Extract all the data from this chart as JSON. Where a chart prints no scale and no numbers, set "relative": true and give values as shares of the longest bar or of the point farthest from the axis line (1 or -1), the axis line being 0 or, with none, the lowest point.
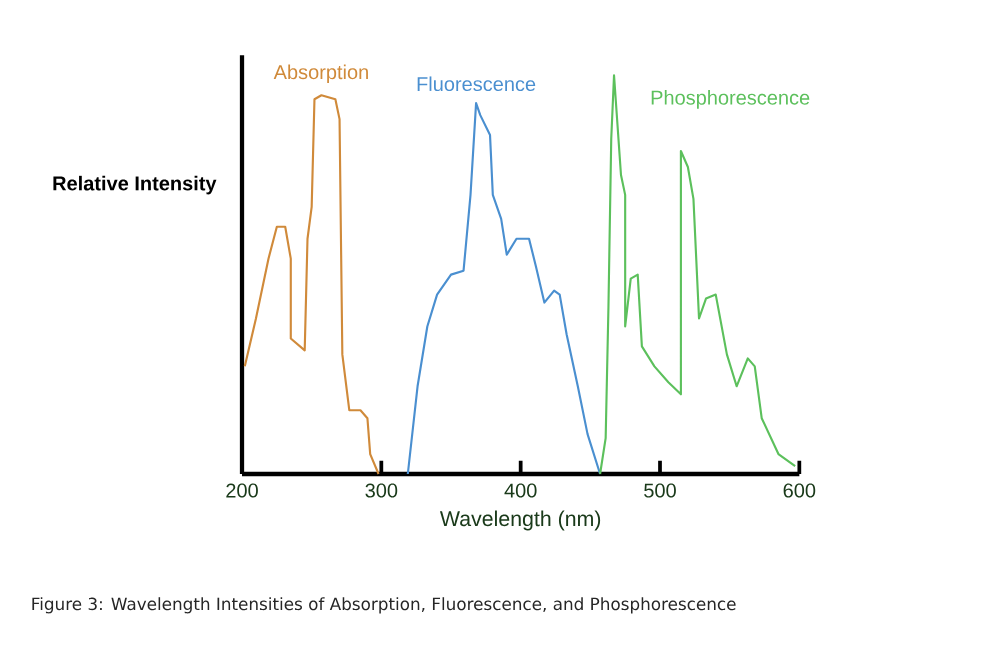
{
  "chart_data": {
    "type": "line",
    "relative": true,
    "xlabel": "Wavelength (nm)",
    "ylabel": "Relative Intensity",
    "xlim": [
      200,
      600
    ],
    "xticks": [
      200,
      300,
      400,
      500,
      600
    ],
    "grid": false,
    "legend": false,
    "marker": "none",
    "line_style": "solid",
    "annotations": [
      "Figure 3: Wavelength Intensities of Absorption, Fluorescence, and Phosphorescence"
    ],
    "series": [
      {
        "name": "Absorption",
        "color": "#d08a3a",
        "x": [
          202,
          210,
          219,
          225,
          231,
          235,
          235,
          245,
          247,
          250,
          252,
          257,
          267,
          270,
          272,
          277,
          285,
          290,
          292,
          298
        ],
        "values": [
          0.27,
          0.39,
          0.54,
          0.62,
          0.62,
          0.54,
          0.34,
          0.31,
          0.59,
          0.67,
          0.94,
          0.95,
          0.94,
          0.89,
          0.3,
          0.16,
          0.16,
          0.14,
          0.05,
          0
        ]
      },
      {
        "name": "Fluorescence",
        "color": "#4a8fd0",
        "x": [
          319,
          326,
          333,
          340,
          350,
          359,
          364,
          368,
          371,
          378,
          380,
          386,
          390,
          397,
          406,
          411,
          417,
          424,
          428,
          433,
          441,
          448,
          457
        ],
        "values": [
          0,
          0.22,
          0.37,
          0.45,
          0.5,
          0.51,
          0.7,
          0.93,
          0.9,
          0.85,
          0.7,
          0.64,
          0.55,
          0.59,
          0.59,
          0.52,
          0.43,
          0.46,
          0.45,
          0.35,
          0.22,
          0.1,
          0
        ]
      },
      {
        "name": "Phosphorescence",
        "color": "#5cc05c",
        "x": [
          457,
          461,
          463,
          465,
          467,
          472,
          475,
          475,
          479,
          484,
          487,
          496,
          506,
          515,
          515,
          520,
          524,
          528,
          533,
          540,
          548,
          555,
          563,
          568,
          573,
          585,
          597
        ],
        "values": [
          0,
          0.09,
          0.42,
          0.84,
          1.0,
          0.75,
          0.7,
          0.37,
          0.49,
          0.5,
          0.32,
          0.27,
          0.23,
          0.2,
          0.81,
          0.77,
          0.69,
          0.39,
          0.44,
          0.45,
          0.3,
          0.22,
          0.29,
          0.27,
          0.14,
          0.05,
          0.02
        ]
      }
    ]
  }
}
